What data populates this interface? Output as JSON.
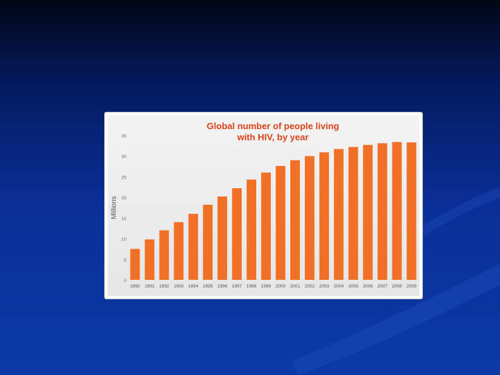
{
  "chart_data": {
    "type": "bar",
    "title_lines": [
      "Global number of people living",
      "with HIV, by year"
    ],
    "ylabel": "Millions",
    "xlabel": "",
    "ylim": [
      0,
      35
    ],
    "yticks": [
      "0",
      "5",
      "10",
      "15",
      "20",
      "25",
      "30",
      "35"
    ],
    "categories": [
      "1990",
      "1991",
      "1992",
      "1993",
      "1994",
      "1995",
      "1996",
      "1997",
      "1998",
      "1999",
      "2000",
      "2001",
      "2002",
      "2003",
      "2004",
      "2005",
      "2006",
      "2007",
      "2008",
      "2009"
    ],
    "values": [
      7.5,
      9.8,
      12.0,
      14.0,
      16.0,
      18.2,
      20.2,
      22.2,
      24.3,
      26.0,
      27.6,
      29.0,
      30.0,
      30.9,
      31.7,
      32.2,
      32.7,
      33.1,
      33.4,
      33.3
    ],
    "bar_color": "#f07025",
    "grid": false
  }
}
